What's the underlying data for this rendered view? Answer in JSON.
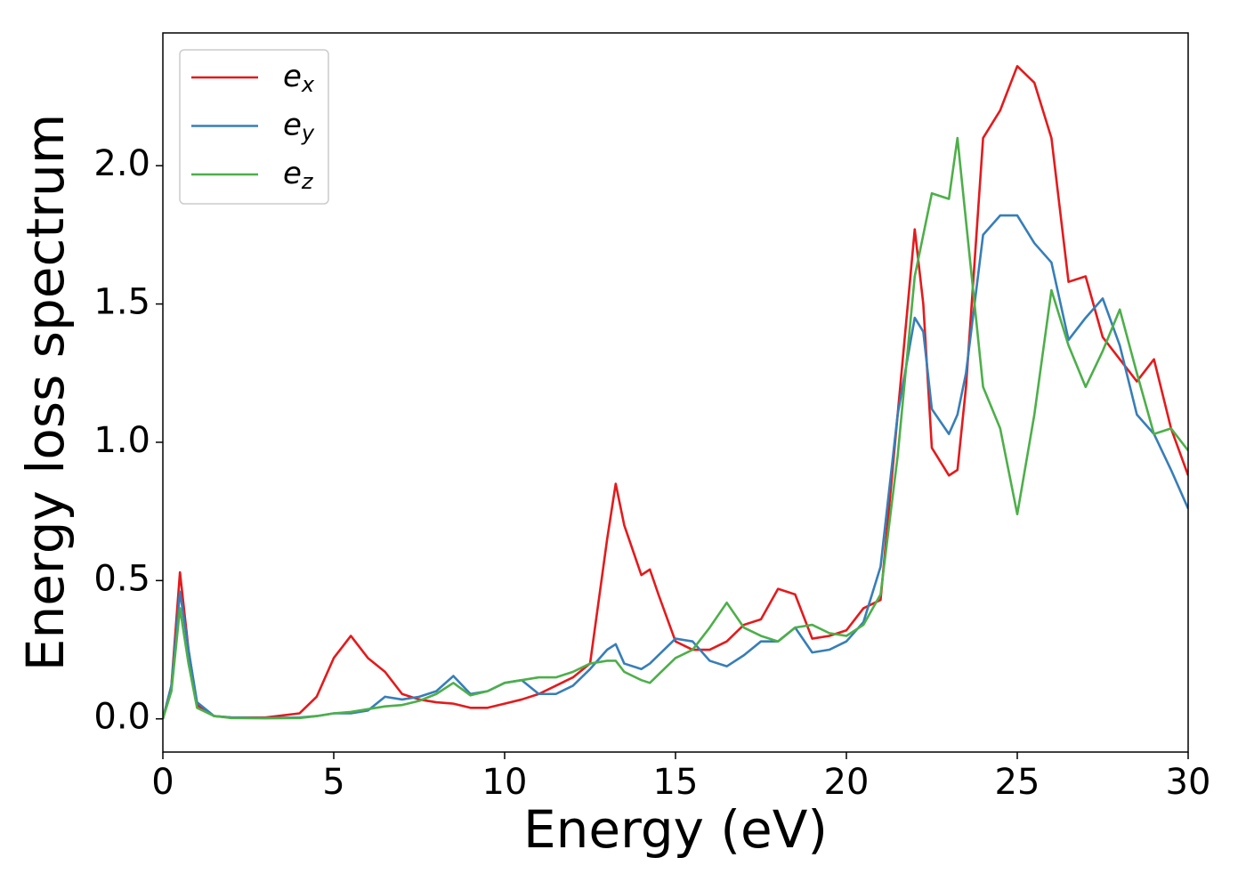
{
  "chart_data": {
    "type": "line",
    "xlabel": "Energy (eV)",
    "ylabel": "Energy loss spectrum",
    "x": [
      0,
      0.25,
      0.5,
      0.75,
      1,
      1.5,
      2,
      3,
      4,
      4.5,
      5,
      5.5,
      6,
      6.5,
      7,
      7.5,
      8,
      8.5,
      9,
      9.5,
      10,
      10.5,
      11,
      11.5,
      12,
      12.5,
      13,
      13.25,
      13.5,
      14,
      14.25,
      14.5,
      15,
      15.5,
      16,
      16.5,
      17,
      17.5,
      18,
      18.5,
      19,
      19.5,
      20,
      20.5,
      21,
      21.5,
      22,
      22.25,
      22.5,
      23,
      23.25,
      23.5,
      24,
      24.5,
      25,
      25.5,
      26,
      26.5,
      27,
      27.5,
      28,
      28.5,
      29,
      29.5,
      30
    ],
    "series": [
      {
        "name": "ex",
        "color": "#e41a1c",
        "values": [
          0,
          0.12,
          0.53,
          0.25,
          0.05,
          0.01,
          0.005,
          0.005,
          0.02,
          0.08,
          0.22,
          0.3,
          0.22,
          0.17,
          0.09,
          0.07,
          0.06,
          0.055,
          0.04,
          0.04,
          0.055,
          0.07,
          0.09,
          0.12,
          0.15,
          0.2,
          0.65,
          0.85,
          0.7,
          0.52,
          0.54,
          0.45,
          0.28,
          0.25,
          0.25,
          0.28,
          0.34,
          0.36,
          0.47,
          0.45,
          0.29,
          0.3,
          0.32,
          0.4,
          0.43,
          1.1,
          1.77,
          1.5,
          0.98,
          0.88,
          0.9,
          1.2,
          2.1,
          2.2,
          2.36,
          2.3,
          2.1,
          1.58,
          1.6,
          1.38,
          1.3,
          1.22,
          1.3,
          1.05,
          0.88
        ]
      },
      {
        "name": "ey",
        "color": "#377eb8",
        "values": [
          0,
          0.12,
          0.46,
          0.25,
          0.06,
          0.01,
          0.005,
          0.003,
          0.005,
          0.01,
          0.02,
          0.02,
          0.03,
          0.08,
          0.07,
          0.08,
          0.1,
          0.155,
          0.09,
          0.1,
          0.13,
          0.14,
          0.09,
          0.09,
          0.12,
          0.18,
          0.25,
          0.27,
          0.2,
          0.18,
          0.2,
          0.23,
          0.29,
          0.28,
          0.21,
          0.19,
          0.23,
          0.28,
          0.28,
          0.33,
          0.24,
          0.25,
          0.28,
          0.35,
          0.55,
          1.1,
          1.45,
          1.4,
          1.12,
          1.03,
          1.1,
          1.25,
          1.75,
          1.82,
          1.82,
          1.72,
          1.65,
          1.37,
          1.45,
          1.52,
          1.35,
          1.1,
          1.03,
          0.9,
          0.76
        ]
      },
      {
        "name": "ez",
        "color": "#4daf4a",
        "values": [
          0,
          0.1,
          0.4,
          0.2,
          0.04,
          0.01,
          0.003,
          0.002,
          0.003,
          0.01,
          0.02,
          0.025,
          0.035,
          0.045,
          0.05,
          0.065,
          0.09,
          0.13,
          0.085,
          0.1,
          0.13,
          0.14,
          0.15,
          0.15,
          0.17,
          0.2,
          0.21,
          0.21,
          0.17,
          0.14,
          0.13,
          0.16,
          0.22,
          0.25,
          0.33,
          0.42,
          0.33,
          0.3,
          0.28,
          0.33,
          0.34,
          0.31,
          0.3,
          0.34,
          0.45,
          0.95,
          1.6,
          1.75,
          1.9,
          1.88,
          2.1,
          1.8,
          1.2,
          1.05,
          0.74,
          1.1,
          1.55,
          1.35,
          1.2,
          1.33,
          1.48,
          1.25,
          1.03,
          1.05,
          0.97
        ]
      }
    ],
    "xlim": [
      0,
      30
    ],
    "xticks": [
      0,
      5,
      10,
      15,
      20,
      25,
      30
    ],
    "ylim": [
      -0.12,
      2.48
    ],
    "yticks": [
      {
        "value": 0,
        "label": "0.0"
      },
      {
        "value": 0.5,
        "label": "0.5"
      },
      {
        "value": 1,
        "label": "1.0"
      },
      {
        "value": 1.5,
        "label": "1.5"
      },
      {
        "value": 2,
        "label": "2.0"
      }
    ],
    "grid": false,
    "legend": "upper left"
  }
}
